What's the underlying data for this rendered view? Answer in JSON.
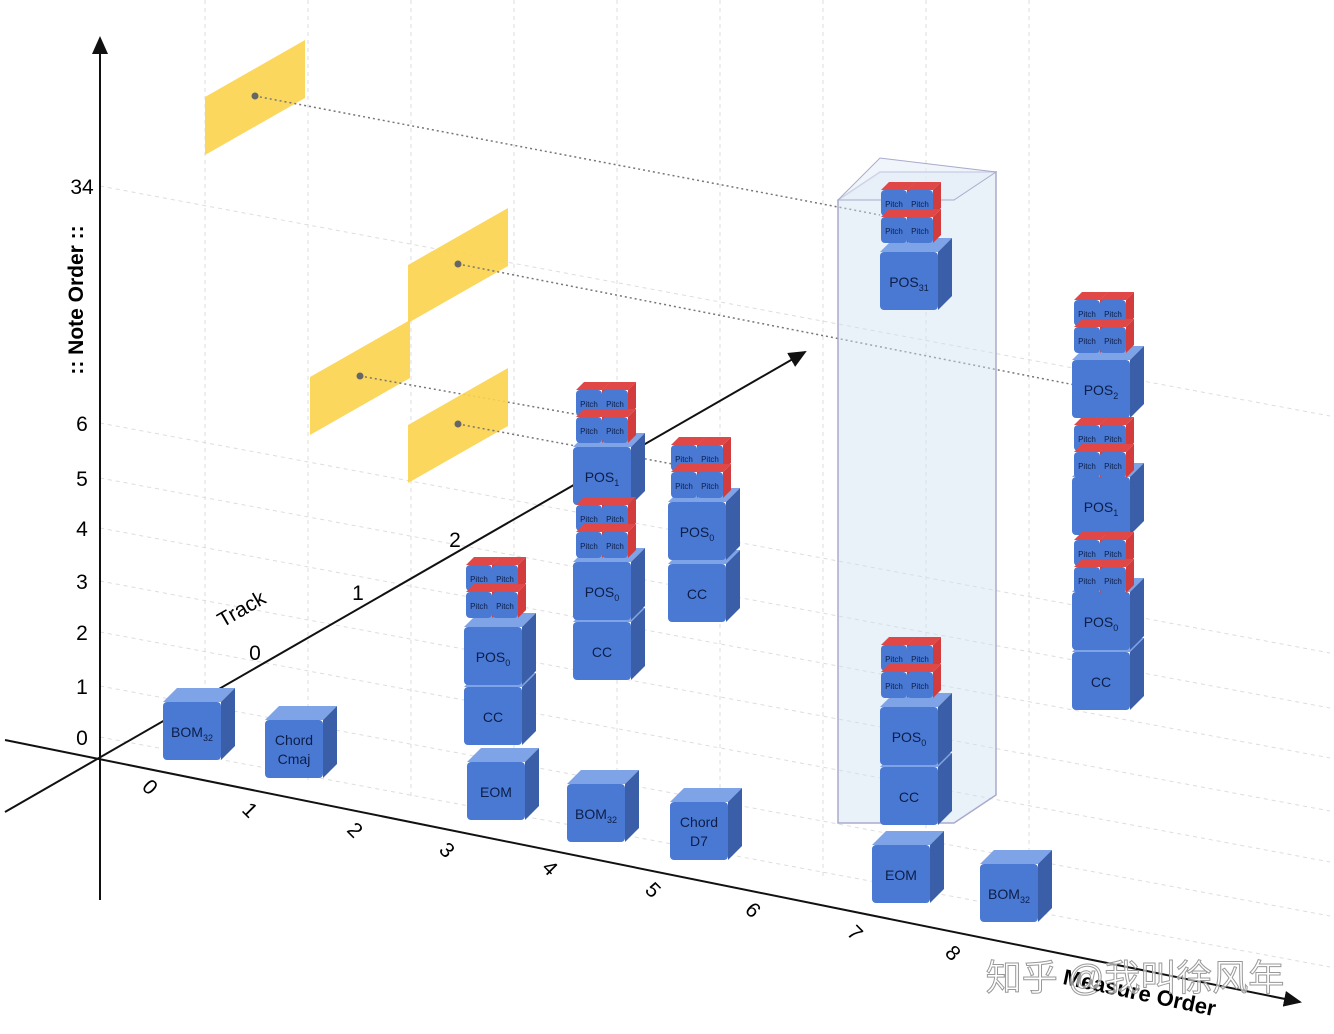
{
  "y_axis": {
    "title": ":: Note Order ::",
    "ticks": [
      "0",
      "1",
      "2",
      "3",
      "4",
      "5",
      "6",
      "34"
    ]
  },
  "x_axis": {
    "title": "Measure Order",
    "ticks": [
      "0",
      "1",
      "2",
      "3",
      "4",
      "5",
      "6",
      "7",
      "8"
    ]
  },
  "track_axis": {
    "title": "Track",
    "ticks": [
      "0",
      "1",
      "2"
    ]
  },
  "pitch_label": "Pitch",
  "blocks": [
    {
      "label": "BOM",
      "sub": "32"
    },
    {
      "lines": [
        "Chord",
        "Cmaj"
      ]
    },
    {
      "label": "EOM"
    },
    {
      "label": "BOM",
      "sub": "32"
    },
    {
      "lines": [
        "Chord",
        "D7"
      ]
    },
    {
      "label": "EOM"
    },
    {
      "label": "BOM",
      "sub": "32"
    },
    {
      "label": "CC"
    },
    {
      "label": "POS",
      "sub": "0"
    },
    {
      "label": "CC"
    },
    {
      "label": "POS",
      "sub": "0"
    },
    {
      "label": "POS",
      "sub": "1"
    },
    {
      "label": "CC"
    },
    {
      "label": "POS",
      "sub": "0"
    },
    {
      "label": "CC"
    },
    {
      "label": "POS",
      "sub": "0"
    },
    {
      "label": "POS",
      "sub": "31"
    },
    {
      "label": "CC"
    },
    {
      "label": "POS",
      "sub": "0"
    },
    {
      "label": "POS",
      "sub": "1"
    },
    {
      "label": "POS",
      "sub": "2"
    }
  ],
  "watermark": "知乎 @我叫徐风年"
}
